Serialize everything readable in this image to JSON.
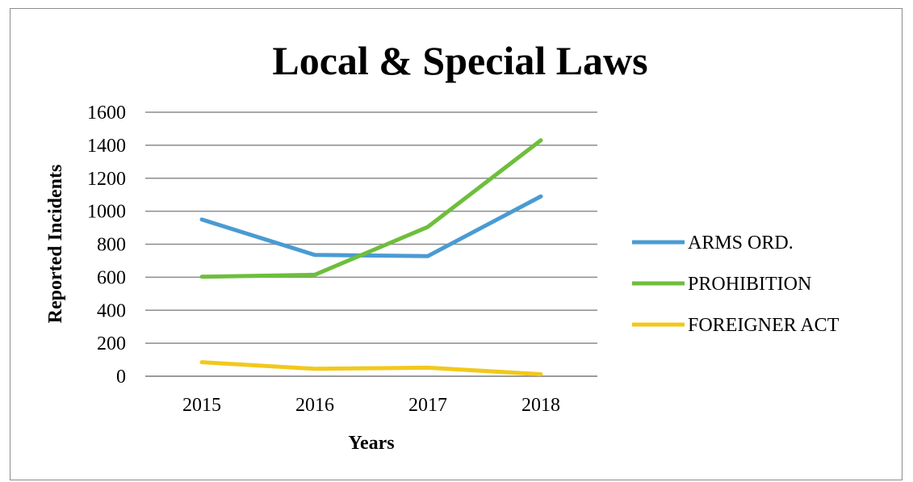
{
  "chart_data": {
    "type": "line",
    "title": "Local & Special Laws",
    "xlabel": "Years",
    "ylabel": "Reported Incidents",
    "categories": [
      "2015",
      "2016",
      "2017",
      "2018"
    ],
    "ylim": [
      0,
      1600
    ],
    "yticks": [
      "0",
      "200",
      "400",
      "600",
      "800",
      "1000",
      "1200",
      "1400",
      "1600"
    ],
    "grid": true,
    "legend_position": "right",
    "series": [
      {
        "name": "ARMS ORD.",
        "color": "#4a9bd2",
        "values": [
          950,
          735,
          728,
          1090
        ]
      },
      {
        "name": "PROHIBITION",
        "color": "#6ebe3c",
        "values": [
          603,
          615,
          905,
          1430
        ]
      },
      {
        "name": "FOREIGNER ACT",
        "color": "#f2c81c",
        "values": [
          85,
          45,
          52,
          12
        ]
      }
    ]
  }
}
